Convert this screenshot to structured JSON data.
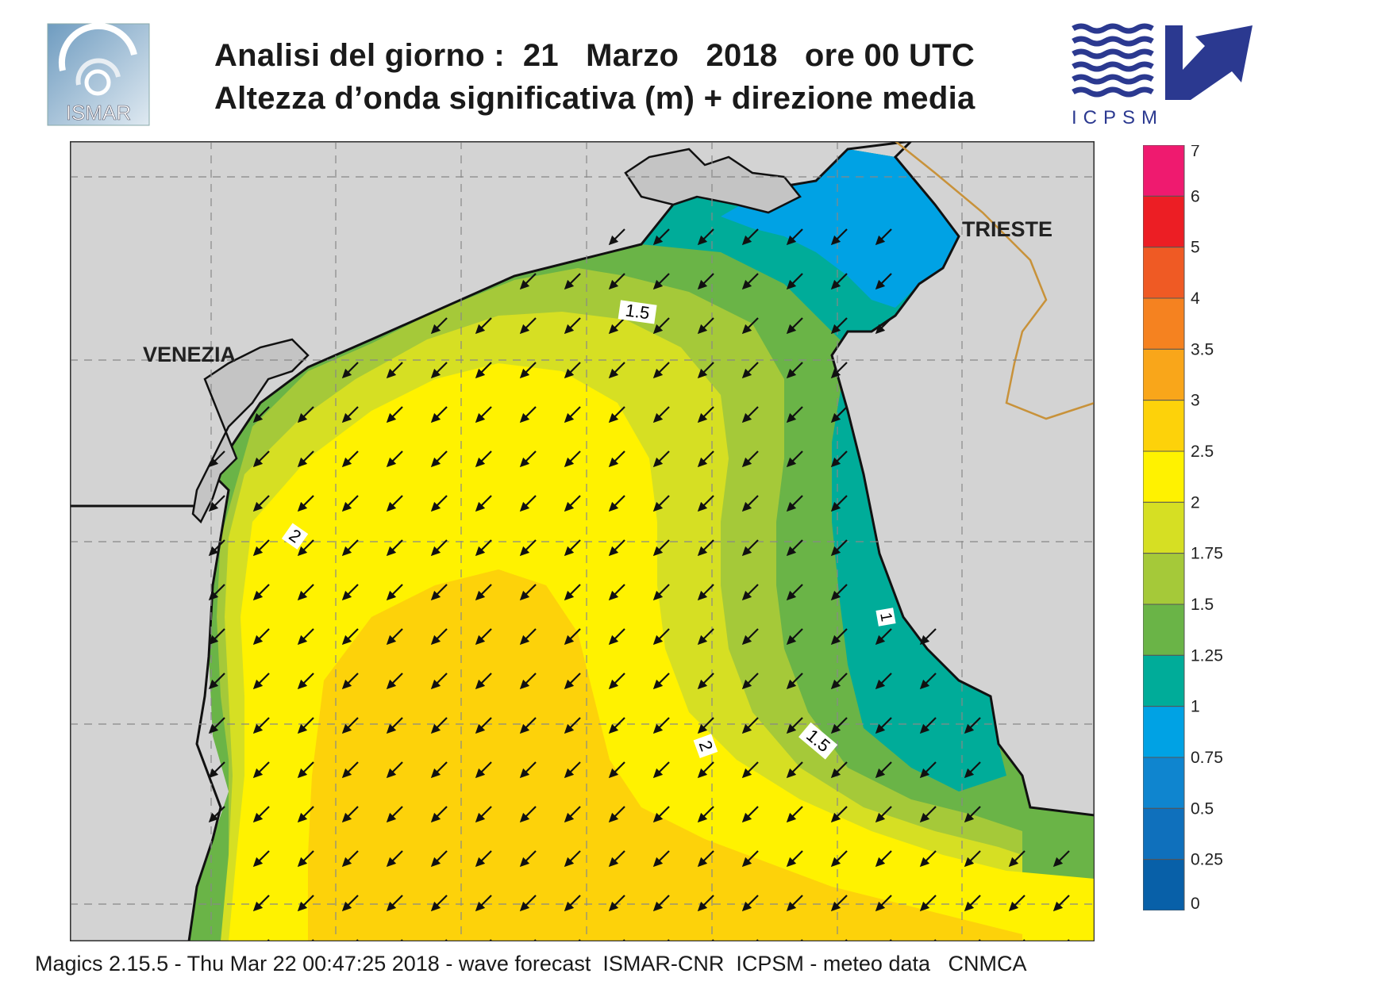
{
  "header": {
    "title_line1": "Analisi del giorno :  21   Marzo   2018   ore 00 UTC",
    "title_line2": "Altezza d’onda significativa (m) + direzione media"
  },
  "logos": {
    "left": {
      "icon": "ismar-logo-icon",
      "text": "ISMAR"
    },
    "right": {
      "icon": "icpsm-logo-icon",
      "text": "ICPSM"
    }
  },
  "map": {
    "cities": [
      "VENEZIA",
      "TRIESTE"
    ],
    "contour_labels": [
      "1.5",
      "2",
      "1.5",
      "2",
      "1"
    ],
    "land_color": "#d3d3d3",
    "coast_color": "#111111",
    "border_color": "#c8923a",
    "arrow_direction": "southwest"
  },
  "legend": {
    "values": [
      "7",
      "6",
      "5",
      "4",
      "3.5",
      "3",
      "2.5",
      "2",
      "1.75",
      "1.5",
      "1.25",
      "1",
      "0.75",
      "0.5",
      "0.25",
      "0"
    ],
    "colors": [
      "#ef1a6f",
      "#ec1e24",
      "#ef5a24",
      "#f58220",
      "#f9a61a",
      "#fdd20a",
      "#fff200",
      "#d6df23",
      "#a5c939",
      "#6ab447",
      "#00ac99",
      "#00a2e4",
      "#0f85cf",
      "#0f70bc",
      "#0860a8"
    ]
  },
  "footer": {
    "text": "Magics 2.15.5 - Thu Mar 22 00:47:25 2018 - wave forecast  ISMAR-CNR  ICPSM - meteo data   CNMCA"
  }
}
